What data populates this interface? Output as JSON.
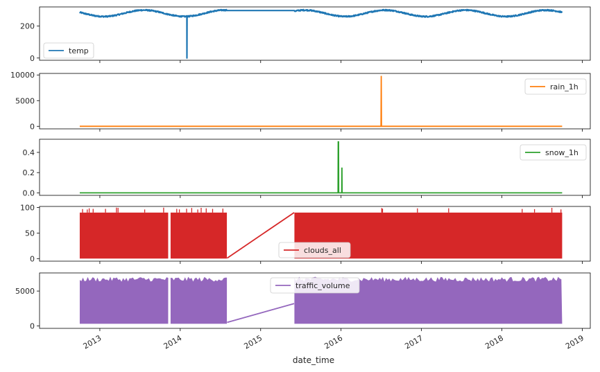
{
  "figure": {
    "xlabel": "date_time"
  },
  "x_ticks": [
    "2013",
    "2014",
    "2015",
    "2016",
    "2017",
    "2018",
    "2019"
  ],
  "chart_data": [
    {
      "type": "line",
      "series_name": "temp",
      "color": "#1f77b4",
      "legend": "temp",
      "legend_position": "lower-left",
      "y_ticks": [
        "0",
        "200"
      ],
      "ylim": [
        -14,
        320
      ],
      "description_values": {
        "typical_range": [
          255,
          305
        ],
        "outlier_low": {
          "date": "2014-02",
          "value": 0
        },
        "gap": [
          "2014-08",
          "2015-06"
        ]
      }
    },
    {
      "type": "line",
      "series_name": "rain_1h",
      "color": "#ff7f0e",
      "legend": "rain_1h",
      "legend_position": "upper-right",
      "y_ticks": [
        "0",
        "5000",
        "10000"
      ],
      "ylim": [
        -500,
        10300
      ],
      "description_values": {
        "baseline": 0,
        "spike": {
          "date": "2016-07",
          "value": 9831
        }
      }
    },
    {
      "type": "line",
      "series_name": "snow_1h",
      "color": "#2ca02c",
      "legend": "snow_1h",
      "legend_position": "upper-right",
      "y_ticks": [
        "0.0",
        "0.2",
        "0.4"
      ],
      "ylim": [
        -0.025,
        0.53
      ],
      "description_values": {
        "baseline": 0,
        "spikes": [
          {
            "date": "2015-12-20",
            "value": 0.51
          },
          {
            "date": "2016-01-05",
            "value": 0.25
          }
        ]
      }
    },
    {
      "type": "area",
      "series_name": "clouds_all",
      "color": "#d62728",
      "legend": "clouds_all",
      "legend_position": "lower-center",
      "y_ticks": [
        "0",
        "50",
        "100"
      ],
      "ylim": [
        -5,
        102
      ],
      "description_values": {
        "band": [
          0,
          90
        ],
        "occasional_max": 100,
        "gap_line": {
          "from": [
            "2014-08",
            1
          ],
          "to": [
            "2015-06",
            90
          ]
        }
      }
    },
    {
      "type": "area",
      "series_name": "traffic_volume",
      "color": "#9467bd",
      "legend": "traffic_volume",
      "legend_position": "upper-center",
      "y_ticks": [
        "0",
        "5000"
      ],
      "ylim": [
        -360,
        7600
      ],
      "description_values": {
        "band": [
          300,
          7000
        ],
        "gap_line": {
          "from": [
            "2014-08",
            500
          ],
          "to": [
            "2015-06",
            3200
          ]
        }
      }
    }
  ]
}
